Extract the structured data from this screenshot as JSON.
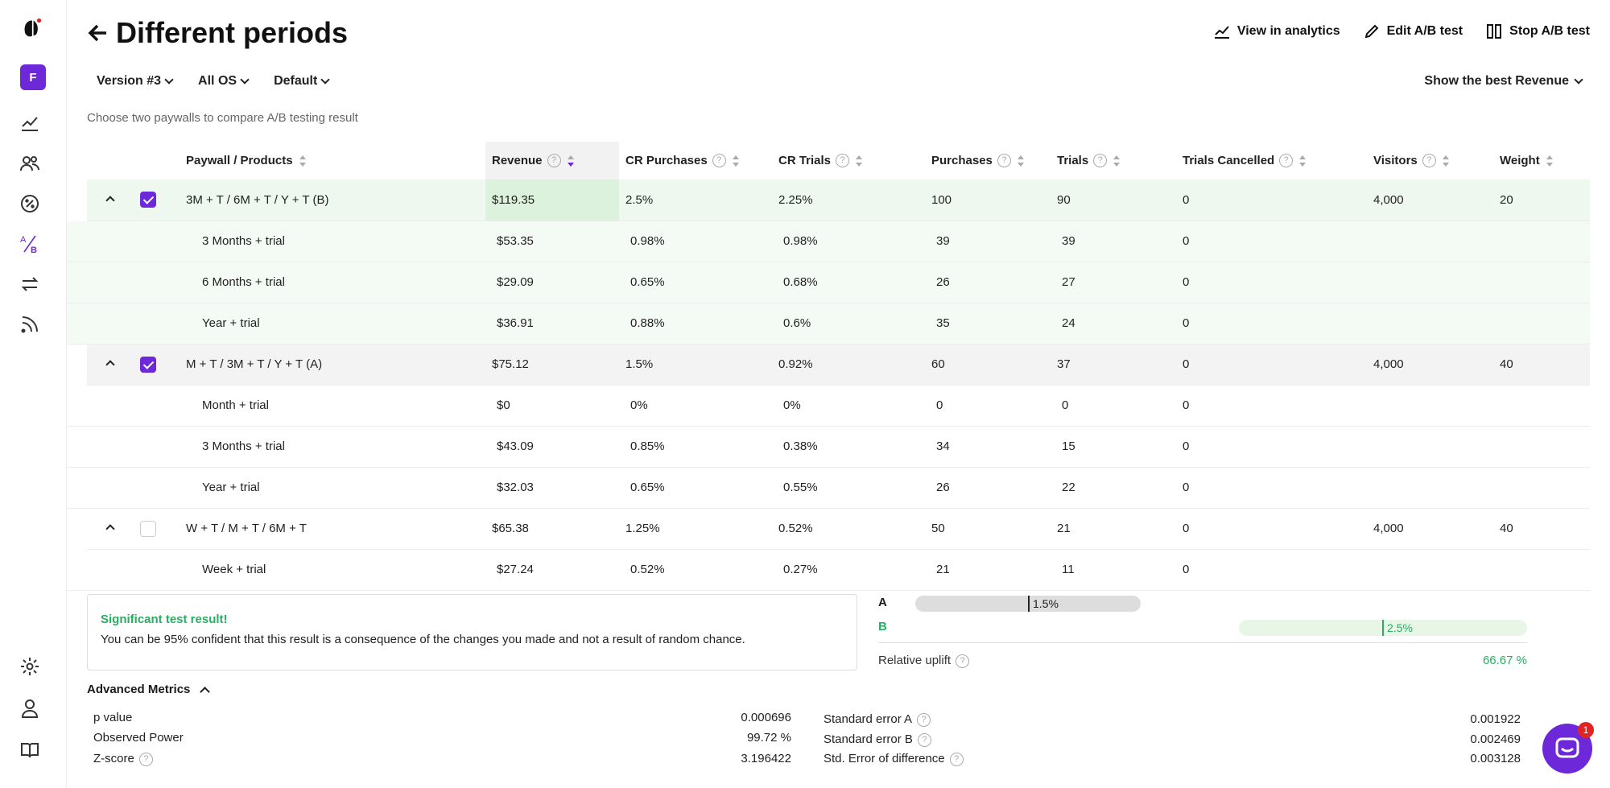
{
  "sidebar": {
    "avatar": "F"
  },
  "header": {
    "title": "Different periods",
    "actions": [
      {
        "label": "View in analytics"
      },
      {
        "label": "Edit A/B test"
      },
      {
        "label": "Stop A/B test"
      }
    ]
  },
  "filters": {
    "version": "Version #3",
    "os": "All OS",
    "default": "Default",
    "best": "Show the best Revenue"
  },
  "subtitle": "Choose two paywalls to compare A/B testing result",
  "table": {
    "headers": [
      "Paywall / Products",
      "Revenue",
      "CR Purchases",
      "CR Trials",
      "Purchases",
      "Trials",
      "Trials Cancelled",
      "Visitors",
      "Weight"
    ],
    "groups": [
      {
        "name": "3M + T / 6M + T / Y + T (B)",
        "revenue": "$119.35",
        "cr_purchases": "2.5%",
        "cr_trials": "2.25%",
        "purchases": "100",
        "trials": "90",
        "trials_cancelled": "0",
        "visitors": "4,000",
        "weight": "20",
        "products": [
          {
            "name": "3 Months + trial",
            "revenue": "$53.35",
            "cr_purchases": "0.98%",
            "cr_trials": "0.98%",
            "purchases": "39",
            "trials": "39",
            "trials_cancelled": "0"
          },
          {
            "name": "6 Months + trial",
            "revenue": "$29.09",
            "cr_purchases": "0.65%",
            "cr_trials": "0.68%",
            "purchases": "26",
            "trials": "27",
            "trials_cancelled": "0"
          },
          {
            "name": "Year + trial",
            "revenue": "$36.91",
            "cr_purchases": "0.88%",
            "cr_trials": "0.6%",
            "purchases": "35",
            "trials": "24",
            "trials_cancelled": "0"
          }
        ]
      },
      {
        "name": "M + T / 3M + T / Y + T (A)",
        "revenue": "$75.12",
        "cr_purchases": "1.5%",
        "cr_trials": "0.92%",
        "purchases": "60",
        "trials": "37",
        "trials_cancelled": "0",
        "visitors": "4,000",
        "weight": "40",
        "products": [
          {
            "name": "Month + trial",
            "revenue": "$0",
            "cr_purchases": "0%",
            "cr_trials": "0%",
            "purchases": "0",
            "trials": "0",
            "trials_cancelled": "0"
          },
          {
            "name": "3 Months + trial",
            "revenue": "$43.09",
            "cr_purchases": "0.85%",
            "cr_trials": "0.38%",
            "purchases": "34",
            "trials": "15",
            "trials_cancelled": "0"
          },
          {
            "name": "Year + trial",
            "revenue": "$32.03",
            "cr_purchases": "0.65%",
            "cr_trials": "0.55%",
            "purchases": "26",
            "trials": "22",
            "trials_cancelled": "0"
          }
        ]
      },
      {
        "name": "W + T / M + T / 6M + T",
        "revenue": "$65.38",
        "cr_purchases": "1.25%",
        "cr_trials": "0.52%",
        "purchases": "50",
        "trials": "21",
        "trials_cancelled": "0",
        "visitors": "4,000",
        "weight": "40",
        "products": [
          {
            "name": "Week + trial",
            "revenue": "$27.24",
            "cr_purchases": "0.52%",
            "cr_trials": "0.27%",
            "purchases": "21",
            "trials": "11",
            "trials_cancelled": "0"
          }
        ]
      }
    ]
  },
  "significance": {
    "title": "Significant test result!",
    "text": "You can be 95% confident that this result is a consequence of the changes you made and not a result of random chance."
  },
  "ab": {
    "a_label": "A",
    "a_value": "1.5%",
    "b_label": "B",
    "b_value": "2.5%",
    "uplift_label": "Relative uplift",
    "uplift_value": "66.67 %"
  },
  "advanced": {
    "title": "Advanced Metrics",
    "p_value_label": "p value",
    "p_value": "0.000696",
    "power_label": "Observed Power",
    "power": "99.72 %",
    "z_label": "Z-score",
    "z": "3.196422",
    "se_a_label": "Standard error A",
    "se_a": "0.001922",
    "se_b_label": "Standard error B",
    "se_b": "0.002469",
    "se_diff_label": "Std. Error of difference",
    "se_diff": "0.003128"
  },
  "chat": {
    "badge": "1"
  },
  "colors": {
    "accent": "#6d28d9",
    "success": "#27ae60",
    "badge": "#e02424"
  }
}
